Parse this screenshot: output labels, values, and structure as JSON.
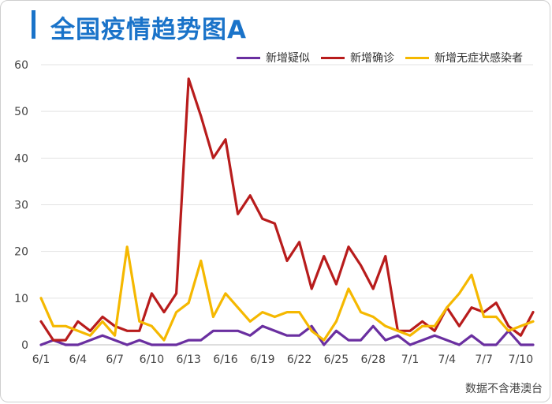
{
  "title": "全国疫情趋势图A",
  "source": "数据不含港澳台",
  "chart_data": {
    "type": "line",
    "title": "全国疫情趋势图A",
    "ylim": [
      0,
      60
    ],
    "y_ticks": [
      0,
      10,
      20,
      30,
      40,
      50,
      60
    ],
    "x": [
      "6/1",
      "6/2",
      "6/3",
      "6/4",
      "6/5",
      "6/6",
      "6/7",
      "6/8",
      "6/9",
      "6/10",
      "6/11",
      "6/12",
      "6/13",
      "6/14",
      "6/15",
      "6/16",
      "6/17",
      "6/18",
      "6/19",
      "6/20",
      "6/21",
      "6/22",
      "6/23",
      "6/24",
      "6/25",
      "6/26",
      "6/27",
      "6/28",
      "6/29",
      "6/30",
      "7/1",
      "7/2",
      "7/3",
      "7/4",
      "7/5",
      "7/6",
      "7/7",
      "7/8",
      "7/9",
      "7/10",
      "7/11"
    ],
    "x_tick_labels": [
      "6/1",
      "6/4",
      "6/7",
      "6/10",
      "6/13",
      "6/16",
      "6/19",
      "6/22",
      "6/25",
      "6/28",
      "7/1",
      "7/4",
      "7/7",
      "7/10"
    ],
    "grid": true,
    "legend_position": "top-right",
    "series": [
      {
        "name": "新增疑似",
        "color": "#6a2fa0",
        "values": [
          0,
          1,
          0,
          0,
          1,
          2,
          1,
          0,
          1,
          0,
          0,
          0,
          1,
          1,
          3,
          3,
          3,
          2,
          4,
          3,
          2,
          2,
          4,
          0,
          3,
          1,
          1,
          4,
          1,
          2,
          0,
          1,
          2,
          1,
          0,
          2,
          0,
          0,
          3,
          0,
          0
        ]
      },
      {
        "name": "新增确诊",
        "color": "#b81c1c",
        "values": [
          5,
          1,
          1,
          5,
          3,
          6,
          4,
          3,
          3,
          11,
          7,
          11,
          57,
          49,
          40,
          44,
          28,
          32,
          27,
          26,
          18,
          22,
          12,
          19,
          13,
          21,
          17,
          12,
          19,
          3,
          3,
          5,
          3,
          8,
          4,
          8,
          7,
          9,
          4,
          2,
          7
        ]
      },
      {
        "name": "新增无症状感染者",
        "color": "#f5b800",
        "values": [
          10,
          4,
          4,
          3,
          2,
          5,
          2,
          21,
          5,
          4,
          1,
          7,
          9,
          18,
          6,
          11,
          8,
          5,
          7,
          6,
          7,
          7,
          3,
          1,
          5,
          12,
          7,
          6,
          4,
          3,
          2,
          4,
          4,
          8,
          11,
          15,
          6,
          6,
          3,
          4,
          5
        ]
      }
    ]
  }
}
